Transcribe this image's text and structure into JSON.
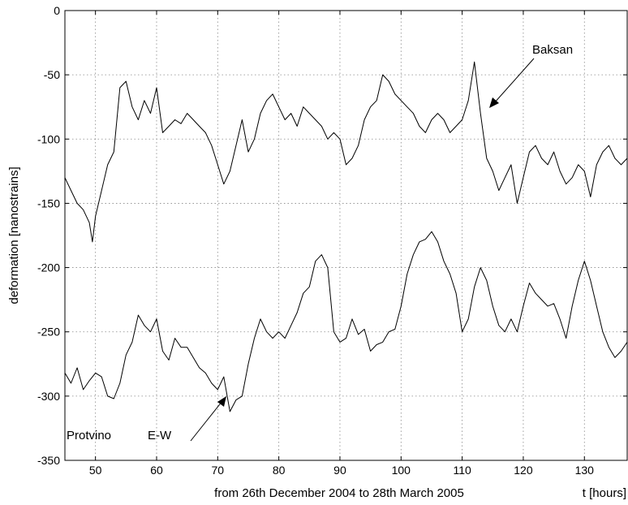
{
  "chart_data": {
    "type": "line",
    "title": "",
    "xlabel": "t [hours]",
    "ylabel": "deformation [nanostrains]",
    "subtitle": "from 26th December 2004 to 28th March 2005",
    "xlim": [
      45,
      137
    ],
    "ylim": [
      -350,
      0
    ],
    "x_ticks": [
      50,
      60,
      70,
      80,
      90,
      100,
      110,
      120,
      130
    ],
    "y_ticks": [
      0,
      -50,
      -100,
      -150,
      -200,
      -250,
      -300,
      -350
    ],
    "grid": true,
    "line_color": "#000000",
    "series": [
      {
        "name": "Baksan",
        "x": [
          45,
          46,
          47,
          48,
          49,
          49.5,
          50,
          51,
          52,
          53,
          54,
          55,
          56,
          57,
          58,
          59,
          60,
          61,
          62,
          63,
          64,
          65,
          66,
          67,
          68,
          69,
          70,
          71,
          72,
          73,
          74,
          75,
          76,
          77,
          78,
          79,
          80,
          81,
          82,
          83,
          84,
          85,
          86,
          87,
          88,
          89,
          90,
          91,
          92,
          93,
          94,
          95,
          96,
          97,
          98,
          99,
          100,
          101,
          102,
          103,
          104,
          105,
          106,
          107,
          108,
          109,
          110,
          111,
          112,
          113,
          114,
          115,
          116,
          117,
          118,
          119,
          120,
          121,
          122,
          123,
          124,
          125,
          126,
          127,
          128,
          129,
          130,
          131,
          132,
          133,
          134,
          135,
          136,
          137
        ],
        "y": [
          -130,
          -140,
          -150,
          -155,
          -165,
          -180,
          -160,
          -140,
          -120,
          -110,
          -60,
          -55,
          -75,
          -85,
          -70,
          -80,
          -60,
          -95,
          -90,
          -85,
          -88,
          -80,
          -85,
          -90,
          -95,
          -105,
          -120,
          -135,
          -125,
          -105,
          -85,
          -110,
          -100,
          -80,
          -70,
          -65,
          -75,
          -85,
          -80,
          -90,
          -75,
          -80,
          -85,
          -90,
          -100,
          -95,
          -100,
          -120,
          -115,
          -105,
          -85,
          -75,
          -70,
          -50,
          -55,
          -65,
          -70,
          -75,
          -80,
          -90,
          -95,
          -85,
          -80,
          -85,
          -95,
          -90,
          -85,
          -70,
          -40,
          -80,
          -115,
          -125,
          -140,
          -130,
          -120,
          -150,
          -130,
          -110,
          -105,
          -115,
          -120,
          -110,
          -125,
          -135,
          -130,
          -120,
          -125,
          -145,
          -120,
          -110,
          -105,
          -115,
          -120,
          -115
        ]
      },
      {
        "name": "Protvino E-W",
        "x": [
          45,
          46,
          47,
          48,
          49,
          50,
          51,
          52,
          53,
          54,
          55,
          56,
          57,
          58,
          59,
          60,
          61,
          62,
          63,
          64,
          65,
          66,
          67,
          68,
          69,
          70,
          71,
          72,
          73,
          74,
          75,
          76,
          77,
          78,
          79,
          80,
          81,
          82,
          83,
          84,
          85,
          86,
          87,
          88,
          89,
          90,
          91,
          92,
          93,
          94,
          95,
          96,
          97,
          98,
          99,
          100,
          101,
          102,
          103,
          104,
          105,
          106,
          107,
          108,
          109,
          110,
          111,
          112,
          113,
          114,
          115,
          116,
          117,
          118,
          119,
          120,
          121,
          122,
          123,
          124,
          125,
          126,
          127,
          128,
          129,
          130,
          131,
          132,
          133,
          134,
          135,
          136,
          137
        ],
        "y": [
          -282,
          -290,
          -278,
          -295,
          -288,
          -282,
          -285,
          -300,
          -302,
          -290,
          -268,
          -258,
          -237,
          -245,
          -250,
          -240,
          -265,
          -272,
          -255,
          -262,
          -262,
          -270,
          -278,
          -282,
          -290,
          -295,
          -285,
          -312,
          -303,
          -300,
          -275,
          -255,
          -240,
          -250,
          -255,
          -250,
          -255,
          -245,
          -235,
          -220,
          -215,
          -195,
          -190,
          -200,
          -250,
          -258,
          -255,
          -240,
          -252,
          -248,
          -265,
          -260,
          -258,
          -250,
          -248,
          -230,
          -205,
          -190,
          -180,
          -178,
          -172,
          -180,
          -195,
          -205,
          -220,
          -250,
          -240,
          -215,
          -200,
          -210,
          -230,
          -245,
          -250,
          -240,
          -250,
          -230,
          -212,
          -220,
          -225,
          -230,
          -228,
          -240,
          -255,
          -230,
          -210,
          -195,
          -210,
          -230,
          -250,
          -262,
          -270,
          -265,
          -258
        ]
      }
    ],
    "annotations": [
      {
        "text": "Baksan"
      },
      {
        "text": "Protvino"
      },
      {
        "text": "E-W"
      }
    ]
  }
}
